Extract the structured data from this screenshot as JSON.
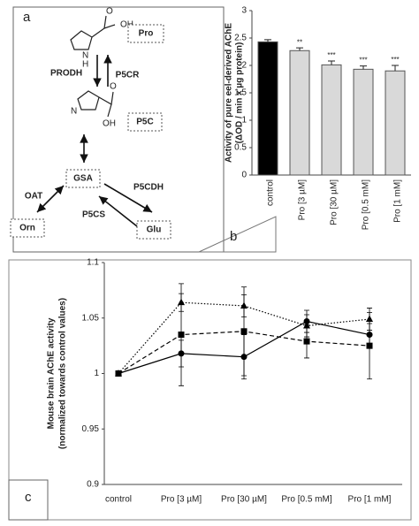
{
  "diagram": {
    "panel_label": "a",
    "nodes": [
      {
        "label": "Pro"
      },
      {
        "label": "P5C"
      },
      {
        "label": "GSA"
      },
      {
        "label": "Orn"
      },
      {
        "label": "Glu"
      }
    ],
    "enzymes": [
      "PRODH",
      "P5CR",
      "OAT",
      "P5CDH",
      "P5CS"
    ],
    "structure_labels": [
      "O",
      "OH",
      "N",
      "H",
      "O",
      "OH",
      "N"
    ]
  },
  "chart_data": [
    {
      "type": "bar",
      "panel_label": "b",
      "y_label": [
        "Activity of pure eel-derived AChE",
        "(ΔOD / min x µg protein)"
      ],
      "categories": [
        "control",
        "Pro [3 µM]",
        "Pro [30 µM]",
        "Pro [0.5 mM]",
        "Pro [1 mM]"
      ],
      "values": [
        2.43,
        2.27,
        2.01,
        1.93,
        1.9
      ],
      "errors": [
        0.04,
        0.05,
        0.07,
        0.06,
        0.1
      ],
      "significance": [
        null,
        "**",
        "***",
        "***",
        "***"
      ],
      "colors": [
        "#000000",
        "#d9d9d9",
        "#d9d9d9",
        "#d9d9d9",
        "#d9d9d9"
      ],
      "ylim": [
        0,
        3
      ],
      "yticks": [
        0,
        0.5,
        1,
        1.5,
        2,
        2.5,
        3
      ]
    },
    {
      "type": "line",
      "panel_label": "c",
      "y_label": [
        "Mouse brain AChE activity",
        "(normalized towards control values)"
      ],
      "categories": [
        "control",
        "Pro [3 µM]",
        "Pro [30 µM]",
        "Pro [0.5 mM]",
        "Pro [1 mM]"
      ],
      "series": [
        {
          "color": "#000000",
          "dash": "solid",
          "marker": "circle",
          "values": [
            1,
            1.018,
            1.015,
            1.047,
            1.035
          ],
          "errors": [
            0,
            0.012,
            0.02,
            0.01,
            0.01
          ]
        },
        {
          "color": "#000000",
          "dash": "dashed",
          "marker": "square",
          "values": [
            1,
            1.035,
            1.038,
            1.029,
            1.025
          ],
          "errors": [
            0,
            0.046,
            0.04,
            0.015,
            0.03
          ]
        },
        {
          "color": "#000000",
          "dash": "dotted",
          "marker": "triangle",
          "values": [
            1,
            1.064,
            1.061,
            1.043,
            1.049
          ],
          "errors": [
            0,
            0.008,
            0.01,
            0.01,
            0.01
          ]
        }
      ],
      "ylim": [
        0.9,
        1.1
      ],
      "yticks": [
        0.9,
        0.95,
        1,
        1.05,
        1.1
      ]
    }
  ]
}
